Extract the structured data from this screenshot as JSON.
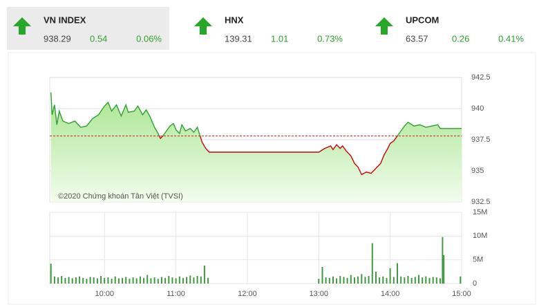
{
  "indices": [
    {
      "name": "VN INDEX",
      "value": 938.29,
      "change": 0.54,
      "change_pct": "0.06%"
    },
    {
      "name": "HNX",
      "value": 139.31,
      "change": 1.01,
      "change_pct": "0.73%"
    },
    {
      "name": "UPCOM",
      "value": 63.57,
      "change": 0.26,
      "change_pct": "0.41%"
    }
  ],
  "chart_data": [
    {
      "type": "line",
      "annotation": "©2020 Chứng khoán Tân Việt (TVSI)",
      "xlim": [
        "09:14",
        "15:00"
      ],
      "ylim": [
        932.5,
        942.5
      ],
      "yticks": [
        932.5,
        935,
        937.5,
        940,
        942.5
      ],
      "grid": true,
      "reference_line": 937.8,
      "reference_color": "#cc2222",
      "color_up": "#2ea02e",
      "color_down": "#cc0000",
      "x": [
        "09:15",
        "09:16",
        "09:18",
        "09:20",
        "09:22",
        "09:25",
        "09:30",
        "09:35",
        "09:40",
        "09:45",
        "09:50",
        "09:55",
        "10:00",
        "10:03",
        "10:06",
        "10:10",
        "10:14",
        "10:18",
        "10:20",
        "10:25",
        "10:28",
        "10:32",
        "10:35",
        "10:38",
        "10:42",
        "10:45",
        "10:47",
        "10:49",
        "10:52",
        "10:55",
        "10:58",
        "11:00",
        "11:03",
        "11:05",
        "11:08",
        "11:12",
        "11:15",
        "11:18",
        "11:20",
        "11:22",
        "11:25",
        "11:28",
        "11:30",
        "13:00",
        "13:05",
        "13:10",
        "13:12",
        "13:15",
        "13:18",
        "13:20",
        "13:23",
        "13:27",
        "13:30",
        "13:33",
        "13:36",
        "13:40",
        "13:44",
        "13:48",
        "13:52",
        "13:55",
        "13:58",
        "14:00",
        "14:03",
        "14:06",
        "14:09",
        "14:12",
        "14:15",
        "14:20",
        "14:25",
        "14:30",
        "14:35",
        "14:40",
        "14:42",
        "14:45",
        "15:00"
      ],
      "series": [
        {
          "values": [
            941.3,
            939.5,
            940.3,
            938.7,
            939.8,
            939.0,
            938.8,
            939.0,
            938.5,
            938.6,
            939.2,
            939.5,
            940.2,
            940.5,
            939.8,
            940.3,
            939.4,
            940.3,
            939.7,
            939.8,
            940.2,
            939.5,
            939.9,
            939.4,
            938.5,
            938.0,
            937.6,
            937.8,
            938.2,
            938.6,
            938.8,
            938.3,
            938.0,
            938.7,
            938.2,
            938.4,
            938.1,
            938.5,
            937.9,
            937.3,
            936.8,
            936.5,
            936.5,
            936.5,
            936.8,
            937.0,
            936.7,
            937.1,
            936.8,
            937.0,
            936.6,
            936.2,
            935.6,
            935.3,
            934.7,
            934.9,
            934.8,
            935.2,
            935.6,
            936.3,
            936.8,
            937.2,
            937.4,
            937.8,
            938.2,
            938.6,
            938.9,
            938.6,
            938.7,
            938.5,
            938.6,
            938.7,
            938.4,
            938.4,
            938.4
          ]
        }
      ]
    },
    {
      "type": "bar",
      "xlim": [
        "09:14",
        "15:00"
      ],
      "xticks": [
        "10:00",
        "11:00",
        "12:00",
        "13:00",
        "14:00",
        "15:00"
      ],
      "ylim": [
        0,
        15000000
      ],
      "yticks": [
        0,
        {
          "value": 5000000,
          "label": "5M"
        },
        {
          "value": 10000000,
          "label": "10M"
        },
        {
          "value": 15000000,
          "label": "15M"
        }
      ],
      "color": "#3f9a3f",
      "x": [
        "09:15",
        "09:18",
        "09:21",
        "09:24",
        "09:27",
        "09:30",
        "09:33",
        "09:36",
        "09:39",
        "09:42",
        "09:45",
        "09:48",
        "09:51",
        "09:54",
        "09:57",
        "10:00",
        "10:03",
        "10:06",
        "10:09",
        "10:12",
        "10:15",
        "10:18",
        "10:21",
        "10:24",
        "10:27",
        "10:30",
        "10:33",
        "10:36",
        "10:39",
        "10:42",
        "10:45",
        "10:48",
        "10:51",
        "10:54",
        "10:57",
        "11:00",
        "11:03",
        "11:06",
        "11:09",
        "11:12",
        "11:15",
        "11:18",
        "11:21",
        "11:24",
        "11:27",
        "13:00",
        "13:03",
        "13:06",
        "13:09",
        "13:12",
        "13:15",
        "13:18",
        "13:21",
        "13:24",
        "13:27",
        "13:30",
        "13:33",
        "13:36",
        "13:39",
        "13:42",
        "13:45",
        "13:48",
        "13:51",
        "13:54",
        "13:57",
        "14:00",
        "14:03",
        "14:06",
        "14:09",
        "14:12",
        "14:15",
        "14:18",
        "14:21",
        "14:24",
        "14:27",
        "14:30",
        "14:33",
        "14:36",
        "14:39",
        "14:42",
        "14:44",
        "14:45",
        "14:59"
      ],
      "values": [
        4200000,
        1500000,
        1300000,
        1600000,
        1200000,
        1400000,
        1100000,
        1300000,
        1500000,
        1200000,
        1000000,
        1400000,
        1300000,
        1100000,
        1600000,
        1200000,
        1300000,
        1000000,
        1500000,
        1100000,
        1200000,
        1400000,
        1000000,
        1300000,
        1100000,
        1500000,
        1200000,
        1800000,
        1100000,
        1300000,
        1000000,
        1400000,
        1200000,
        1600000,
        1300000,
        1100000,
        1500000,
        1200000,
        1400000,
        1700000,
        1300000,
        1600000,
        1500000,
        3800000,
        1200000,
        1000000,
        3500000,
        1300000,
        1200000,
        1500000,
        1100000,
        1600000,
        1400000,
        1200000,
        1800000,
        1300000,
        1500000,
        2000000,
        1400000,
        1600000,
        8500000,
        2500000,
        1300000,
        1500000,
        1200000,
        3200000,
        1400000,
        4300000,
        1500000,
        1300000,
        1600000,
        1200000,
        1400000,
        1800000,
        1300000,
        1500000,
        1200000,
        1400000,
        1300000,
        1100000,
        9800000,
        6000000,
        1500000
      ]
    }
  ]
}
